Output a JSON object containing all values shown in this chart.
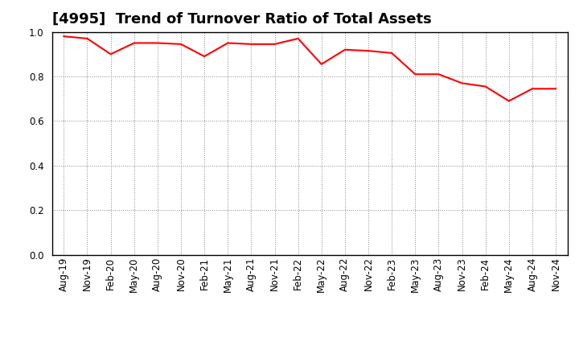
{
  "title": "[4995]  Trend of Turnover Ratio of Total Assets",
  "x_labels": [
    "Aug-19",
    "Nov-19",
    "Feb-20",
    "May-20",
    "Aug-20",
    "Nov-20",
    "Feb-21",
    "May-21",
    "Aug-21",
    "Nov-21",
    "Feb-22",
    "May-22",
    "Aug-22",
    "Nov-22",
    "Feb-23",
    "May-23",
    "Aug-23",
    "Nov-23",
    "Feb-24",
    "May-24",
    "Aug-24",
    "Nov-24"
  ],
  "values": [
    0.98,
    0.97,
    0.9,
    0.95,
    0.95,
    0.945,
    0.89,
    0.95,
    0.945,
    0.945,
    0.97,
    0.855,
    0.92,
    0.915,
    0.905,
    0.81,
    0.81,
    0.77,
    0.755,
    0.69,
    0.745,
    0.745
  ],
  "line_color": "#ff0000",
  "line_width": 1.5,
  "ylim": [
    0.0,
    1.0
  ],
  "yticks": [
    0.0,
    0.2,
    0.4,
    0.6,
    0.8,
    1.0
  ],
  "grid_color": "#888888",
  "bg_color": "#ffffff",
  "plot_bg_color": "#ffffff",
  "title_fontsize": 13,
  "tick_fontsize": 8.5,
  "fig_width": 7.2,
  "fig_height": 4.4,
  "dpi": 100
}
